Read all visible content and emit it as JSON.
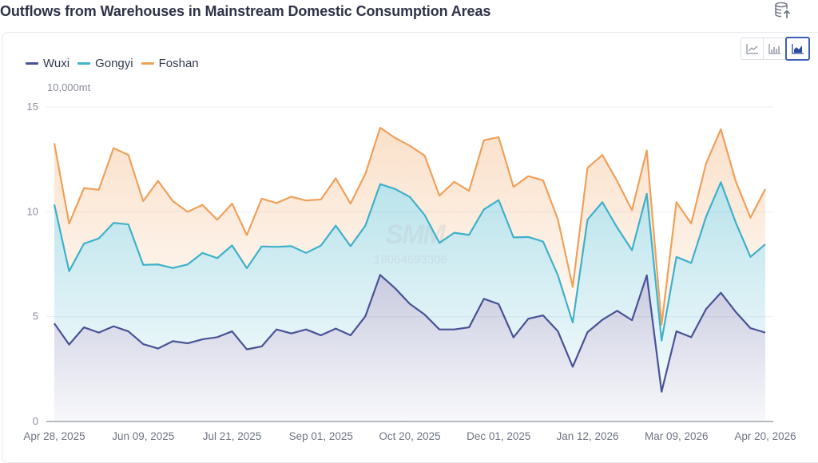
{
  "page": {
    "title": "Outflows from Warehouses in Mainstream Domestic Consumption Areas",
    "export_icon": "database-export-icon"
  },
  "toolbar": {
    "chart_types": [
      {
        "id": "line",
        "icon": "line-chart-icon",
        "active": false
      },
      {
        "id": "bar",
        "icon": "bar-chart-icon",
        "active": false
      },
      {
        "id": "area",
        "icon": "area-chart-icon",
        "active": true
      }
    ]
  },
  "watermark": {
    "logo": "SMM",
    "number": "18064693306"
  },
  "colors": {
    "Wuxi": "#4a5296",
    "Gongyi": "#3fb1c9",
    "Foshan": "#f0a05a",
    "grid": "#eceef5",
    "axis": "#8a8f9c"
  },
  "chart_data": {
    "type": "area",
    "stacked": true,
    "title": "Outflows from Warehouses in Mainstream Domestic Consumption Areas",
    "ylabel": "10,000mt",
    "xlabel": "",
    "ylim": [
      0,
      15
    ],
    "yticks": [
      0,
      5,
      10,
      15
    ],
    "grid": true,
    "legend_position": "top-left",
    "legend": [
      "Wuxi",
      "Gongyi",
      "Foshan"
    ],
    "xtick_labels": [
      "Apr 28, 2025",
      "Jun 09, 2025",
      "Jul 21, 2025",
      "Sep 01, 2025",
      "Oct 20, 2025",
      "Dec 01, 2025",
      "Jan 12, 2026",
      "Mar 09, 2026",
      "Apr 20, 2026"
    ],
    "x": [
      "Apr 28, 2025",
      "May 05, 2025",
      "May 12, 2025",
      "May 19, 2025",
      "May 26, 2025",
      "Jun 02, 2025",
      "Jun 09, 2025",
      "Jun 16, 2025",
      "Jun 23, 2025",
      "Jun 30, 2025",
      "Jul 07, 2025",
      "Jul 14, 2025",
      "Jul 21, 2025",
      "Jul 28, 2025",
      "Aug 04, 2025",
      "Aug 11, 2025",
      "Aug 18, 2025",
      "Aug 25, 2025",
      "Sep 01, 2025",
      "Sep 08, 2025",
      "Sep 15, 2025",
      "Sep 22, 2025",
      "Sep 29, 2025",
      "Oct 13, 2025",
      "Oct 20, 2025",
      "Oct 27, 2025",
      "Nov 03, 2025",
      "Nov 10, 2025",
      "Nov 17, 2025",
      "Nov 24, 2025",
      "Dec 01, 2025",
      "Dec 08, 2025",
      "Dec 15, 2025",
      "Dec 22, 2025",
      "Dec 29, 2025",
      "Jan 05, 2026",
      "Jan 12, 2026",
      "Jan 19, 2026",
      "Jan 26, 2026",
      "Feb 02, 2026",
      "Feb 09, 2026",
      "Mar 02, 2026",
      "Mar 09, 2026",
      "Mar 16, 2026",
      "Mar 23, 2026",
      "Mar 30, 2026",
      "Apr 06, 2026",
      "Apr 13, 2026",
      "Apr 20, 2026"
    ],
    "series": [
      {
        "name": "Wuxi",
        "values": [
          4.68,
          3.67,
          4.49,
          4.24,
          4.54,
          4.3,
          3.69,
          3.48,
          3.83,
          3.73,
          3.92,
          4.02,
          4.3,
          3.44,
          3.58,
          4.39,
          4.2,
          4.39,
          4.11,
          4.43,
          4.11,
          5.02,
          6.99,
          6.36,
          5.61,
          5.1,
          4.39,
          4.39,
          4.49,
          5.85,
          5.6,
          4.01,
          4.9,
          5.06,
          4.3,
          2.61,
          4.26,
          4.85,
          5.28,
          4.83,
          6.97,
          1.42,
          4.3,
          4.02,
          5.36,
          6.14,
          5.23,
          4.45,
          4.24
        ]
      },
      {
        "name": "Gongyi",
        "values": [
          5.67,
          3.5,
          3.99,
          4.49,
          4.93,
          5.1,
          3.78,
          4.01,
          3.49,
          3.76,
          4.12,
          3.77,
          4.1,
          3.87,
          4.77,
          3.94,
          4.16,
          3.65,
          4.28,
          4.91,
          4.25,
          4.32,
          4.33,
          4.73,
          5.1,
          4.75,
          4.13,
          4.61,
          4.41,
          4.26,
          4.96,
          4.77,
          3.9,
          3.52,
          2.67,
          2.11,
          5.37,
          5.61,
          3.97,
          3.34,
          3.89,
          2.44,
          3.55,
          3.54,
          4.4,
          5.27,
          4.27,
          3.4,
          4.21
        ]
      },
      {
        "name": "Foshan",
        "values": [
          2.92,
          2.27,
          2.65,
          2.32,
          3.57,
          3.31,
          3.04,
          3.99,
          3.19,
          2.51,
          2.29,
          1.83,
          1.99,
          1.58,
          2.28,
          2.09,
          2.36,
          2.5,
          2.2,
          2.26,
          2.03,
          2.47,
          2.69,
          2.44,
          2.44,
          2.83,
          2.25,
          2.43,
          2.1,
          3.3,
          3.0,
          2.41,
          2.9,
          2.92,
          2.66,
          1.7,
          2.47,
          2.25,
          2.22,
          1.91,
          2.07,
          0.76,
          2.61,
          1.88,
          2.54,
          2.53,
          1.97,
          1.87,
          2.64
        ]
      }
    ]
  }
}
